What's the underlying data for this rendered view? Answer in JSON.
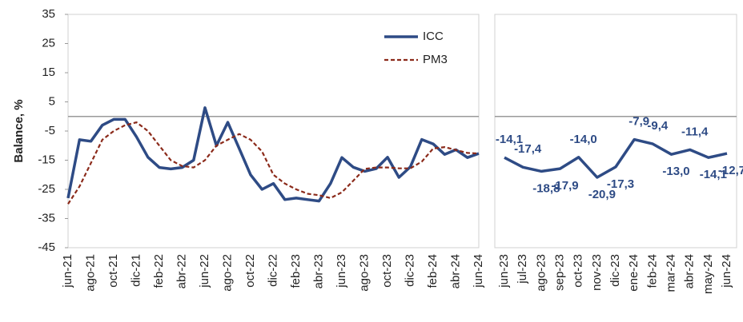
{
  "chart_data": [
    {
      "type": "line",
      "y_label": "Balance, %",
      "categories": [
        "jun-21",
        null,
        "ago-21",
        null,
        "oct-21",
        null,
        "dic-21",
        null,
        "feb-22",
        null,
        "abr-22",
        null,
        "jun-22",
        null,
        "ago-22",
        null,
        "oct-22",
        null,
        "dic-22",
        null,
        "feb-23",
        null,
        "abr-23",
        null,
        "jun-23",
        null,
        "ago-23",
        null,
        "oct-23",
        null,
        "dic-23",
        null,
        "feb-24",
        null,
        "abr-24",
        null,
        "jun-24"
      ],
      "series": [
        {
          "name": "ICC",
          "color": "#2e4b85",
          "style": "solid",
          "values": [
            -28,
            -8,
            -8.5,
            -3,
            -1,
            -1,
            -7,
            -14,
            -17.5,
            -18,
            -17.5,
            -15,
            3,
            -10,
            -2,
            -11,
            -20,
            -25,
            -23,
            -28.5,
            -28,
            -28.5,
            -29,
            -23,
            -14.1,
            -17.4,
            -18.8,
            -17.9,
            -14.0,
            -20.9,
            -17.3,
            -7.9,
            -9.4,
            -13.0,
            -11.4,
            -14.1,
            -12.7
          ]
        },
        {
          "name": "PM3",
          "color": "#8b2a1a",
          "style": "dashed",
          "values": [
            -30,
            -24,
            -16,
            -8,
            -5,
            -3,
            -2,
            -5,
            -10,
            -15,
            -17,
            -17.5,
            -15,
            -10,
            -8,
            -6,
            -8,
            -12,
            -20,
            -23,
            -25,
            -26.5,
            -27,
            -28,
            -26,
            -22,
            -18,
            -17.5,
            -17.5,
            -17.8,
            -17.8,
            -15.5,
            -11,
            -10.5,
            -11.5,
            -12.5,
            -12.7
          ]
        }
      ],
      "ylim": [
        -45,
        35
      ],
      "yticks": [
        -45,
        -35,
        -25,
        -15,
        -5,
        5,
        15,
        25,
        35
      ],
      "legend": "upper right"
    },
    {
      "type": "line",
      "categories": [
        "jun-23",
        "jul-23",
        "ago-23",
        "sep-23",
        "oct-23",
        "nov-23",
        "dic-23",
        "ene-24",
        "feb-24",
        "mar-24",
        "abr-24",
        "may-24",
        "jun-24"
      ],
      "series": [
        {
          "name": "ICC",
          "color": "#2e4b85",
          "style": "solid",
          "values": [
            -14.1,
            -17.4,
            -18.8,
            -17.9,
            -14.0,
            -20.9,
            -17.3,
            -7.9,
            -9.4,
            -13.0,
            -11.4,
            -14.1,
            -12.7
          ],
          "value_labels": [
            "-14,1",
            "-17,4",
            "-18,8",
            "-17,9",
            "-14,0",
            "-20,9",
            "-17,3",
            "-7,9",
            "-9,4",
            "-13,0",
            "-11,4",
            "-14,1",
            "-12,7"
          ]
        }
      ],
      "ylim": [
        -45,
        35
      ]
    }
  ]
}
